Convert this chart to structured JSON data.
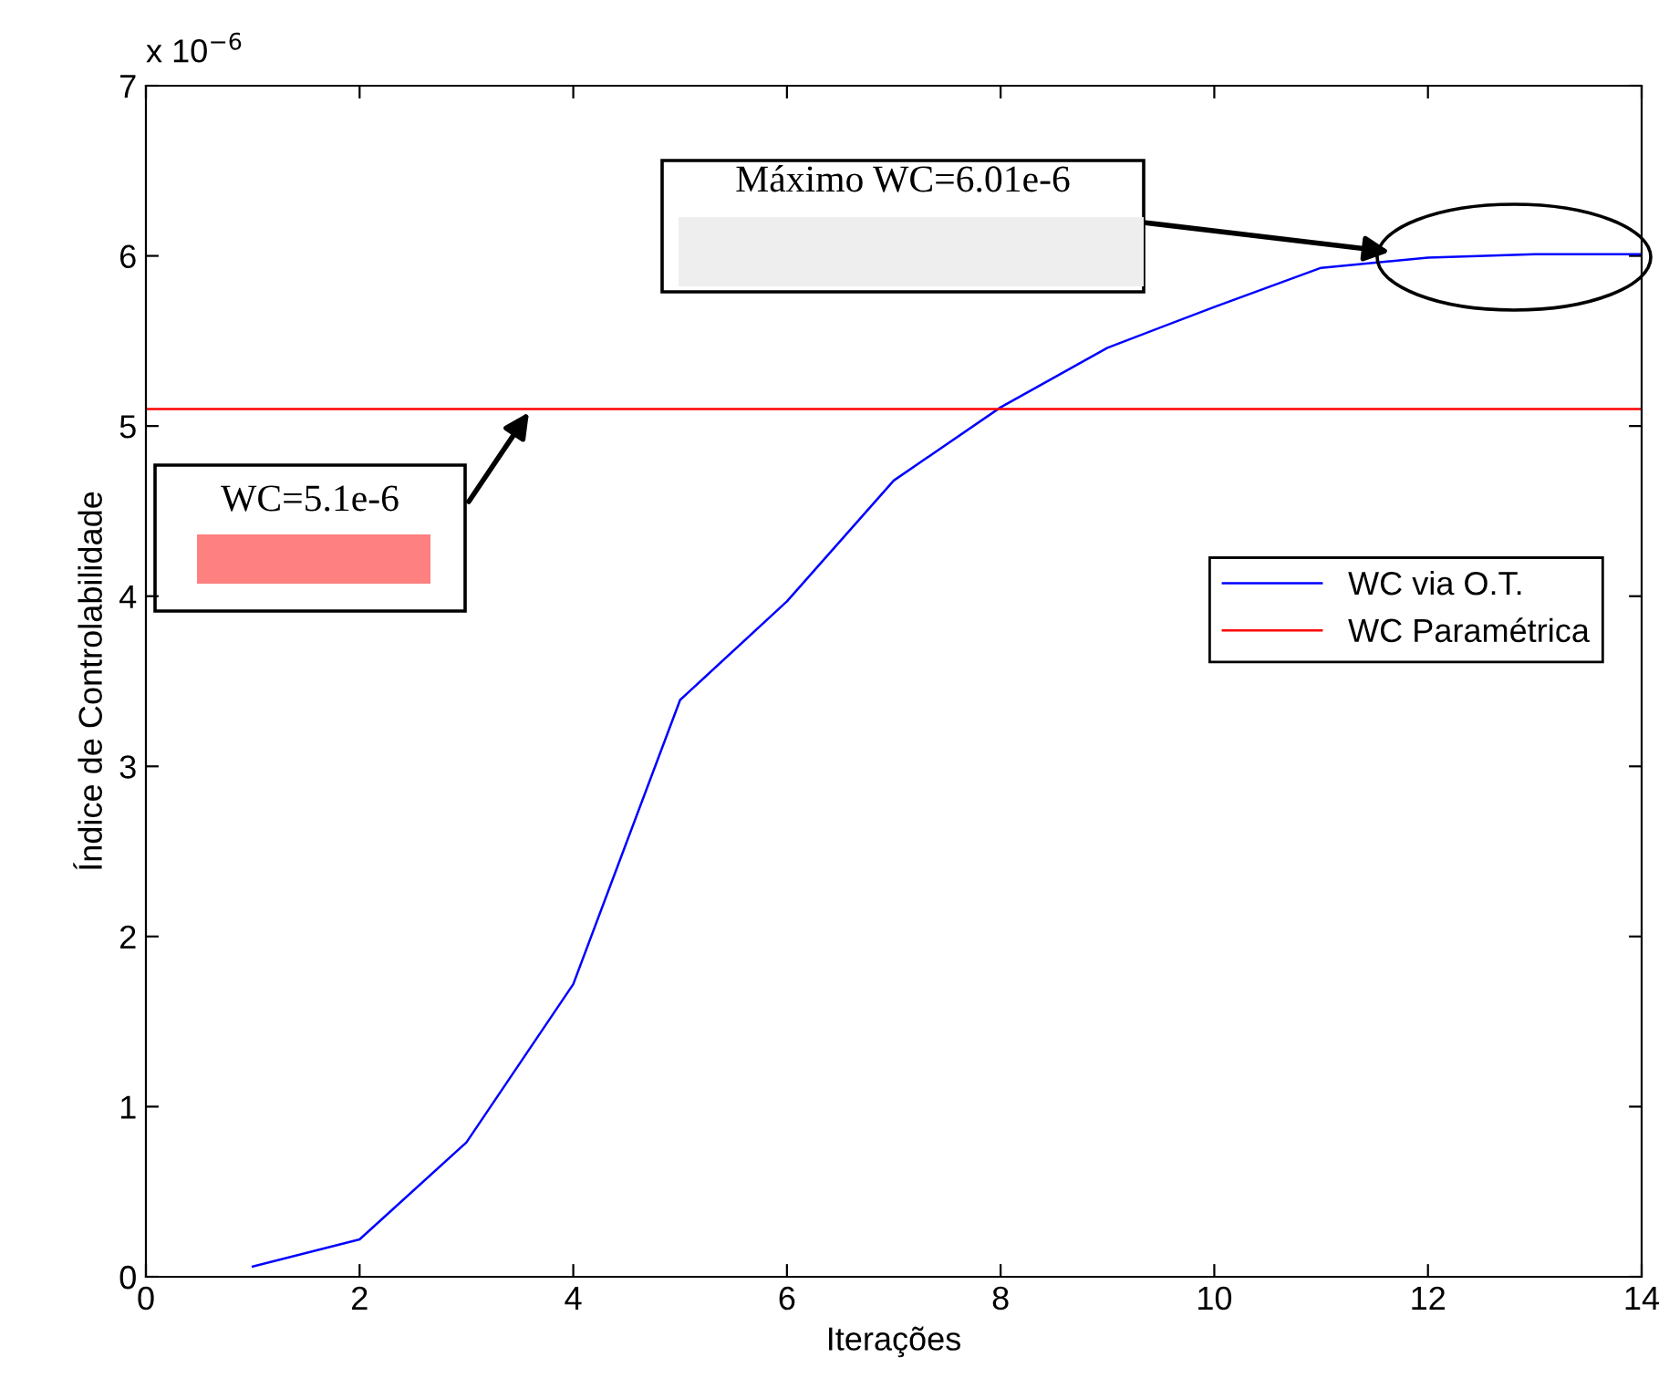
{
  "chart_data": {
    "type": "line",
    "xlabel": "Iterações",
    "ylabel": "Índice de Controlabilidade",
    "x": [
      1,
      2,
      3,
      4,
      5,
      6,
      7,
      8,
      9,
      10,
      11,
      12,
      13,
      14
    ],
    "series": [
      {
        "name": "WC via O.T.",
        "color": "#0000ff",
        "values": [
          0.06,
          0.22,
          0.79,
          1.72,
          3.39,
          3.97,
          4.68,
          5.11,
          5.46,
          5.7,
          5.93,
          5.99,
          6.01,
          6.01
        ]
      }
    ],
    "ref_lines": [
      {
        "axis": "y",
        "value": 5.1,
        "label": "WC Paramétrica",
        "color": "#ff0000"
      }
    ],
    "xlim": [
      0,
      14
    ],
    "xticks": [
      0,
      2,
      4,
      6,
      8,
      10,
      12,
      14
    ],
    "ylim": [
      0,
      7
    ],
    "yticks": [
      0,
      1,
      2,
      3,
      4,
      5,
      6,
      7
    ],
    "annotations": [
      "x 10$^{−6}$",
      "Máximo WC=6.01e-6",
      "WC=5.1e-6"
    ],
    "grid": false,
    "legend": "right",
    "marker": "none",
    "line_style": "solid"
  }
}
